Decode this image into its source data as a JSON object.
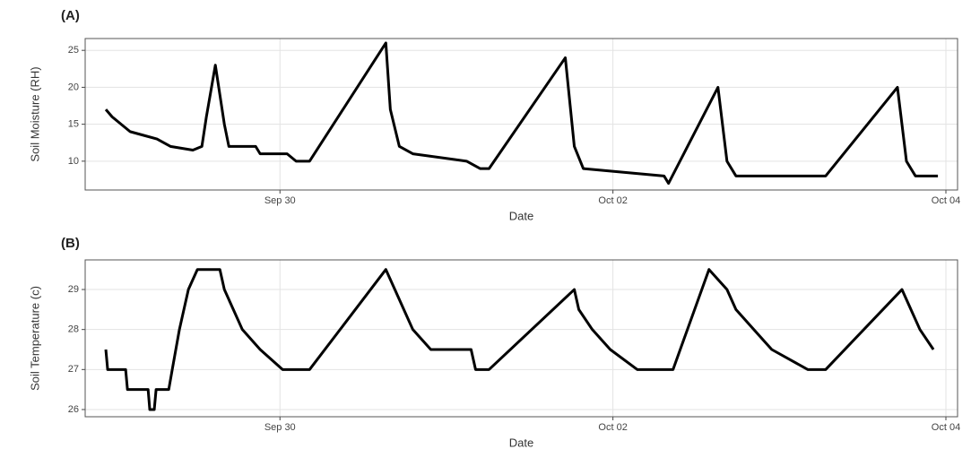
{
  "chart_data": [
    {
      "type": "line",
      "title": "(A)",
      "x_label": "Date",
      "y_label": "Soil Moisture (RH)",
      "color": "#000000",
      "grid": true,
      "xlim": [
        -1.17,
        4.07
      ],
      "xticks": [
        {
          "value": 0,
          "label": "Sep 30"
        },
        {
          "value": 2,
          "label": "Oct 02"
        },
        {
          "value": 4,
          "label": "Oct 04"
        }
      ],
      "ylim": [
        6.1,
        26.6
      ],
      "yticks": [
        10,
        15,
        20,
        25
      ],
      "x": [
        -1.046,
        -1.008,
        -0.954,
        -0.9,
        -0.819,
        -0.739,
        -0.658,
        -0.523,
        -0.469,
        -0.442,
        -0.388,
        -0.334,
        -0.307,
        -0.146,
        -0.119,
        0.043,
        0.097,
        0.178,
        0.636,
        0.663,
        0.717,
        0.798,
        1.121,
        1.202,
        1.256,
        1.714,
        1.768,
        1.822,
        2.307,
        2.334,
        2.631,
        2.685,
        2.739,
        3.278,
        3.709,
        3.763,
        3.79,
        3.817,
        3.952
      ],
      "values": [
        17,
        16,
        15,
        14,
        13.5,
        13,
        12,
        11.5,
        12,
        16,
        23,
        15,
        12,
        12,
        11,
        11,
        10,
        10,
        26,
        17,
        12,
        11,
        10,
        9,
        9,
        24,
        12,
        9,
        8,
        7,
        20,
        10,
        8,
        8,
        20,
        10,
        9,
        8,
        8
      ]
    },
    {
      "type": "line",
      "title": "(B)",
      "x_label": "Date",
      "y_label": "Soil Temperature (c)",
      "color": "#000000",
      "grid": true,
      "xlim": [
        -1.17,
        4.07
      ],
      "xticks": [
        {
          "value": 0,
          "label": "Sep 30"
        },
        {
          "value": 2,
          "label": "Oct 02"
        },
        {
          "value": 4,
          "label": "Oct 04"
        }
      ],
      "ylim": [
        25.82,
        29.74
      ],
      "yticks": [
        26,
        27,
        28,
        29
      ],
      "x": [
        -1.046,
        -1.035,
        -0.927,
        -0.916,
        -0.792,
        -0.782,
        -0.755,
        -0.744,
        -0.668,
        -0.647,
        -0.604,
        -0.55,
        -0.496,
        -0.361,
        -0.334,
        -0.28,
        -0.226,
        -0.119,
        0.016,
        0.178,
        0.636,
        0.69,
        0.744,
        0.798,
        0.906,
        1.148,
        1.175,
        1.256,
        1.768,
        1.795,
        1.876,
        1.984,
        2.146,
        2.361,
        2.577,
        2.685,
        2.739,
        2.846,
        2.954,
        3.17,
        3.278,
        3.736,
        3.79,
        3.844,
        3.925
      ],
      "values": [
        27.5,
        27,
        27,
        26.5,
        26.5,
        26,
        26,
        26.5,
        26.5,
        27,
        28,
        29,
        29.5,
        29.5,
        29,
        28.5,
        28,
        27.5,
        27,
        27,
        29.5,
        29,
        28.5,
        28,
        27.5,
        27.5,
        27,
        27,
        29,
        28.5,
        28,
        27.5,
        27,
        27,
        29.5,
        29,
        28.5,
        28,
        27.5,
        27,
        27,
        29,
        28.5,
        28,
        27.5
      ]
    }
  ]
}
